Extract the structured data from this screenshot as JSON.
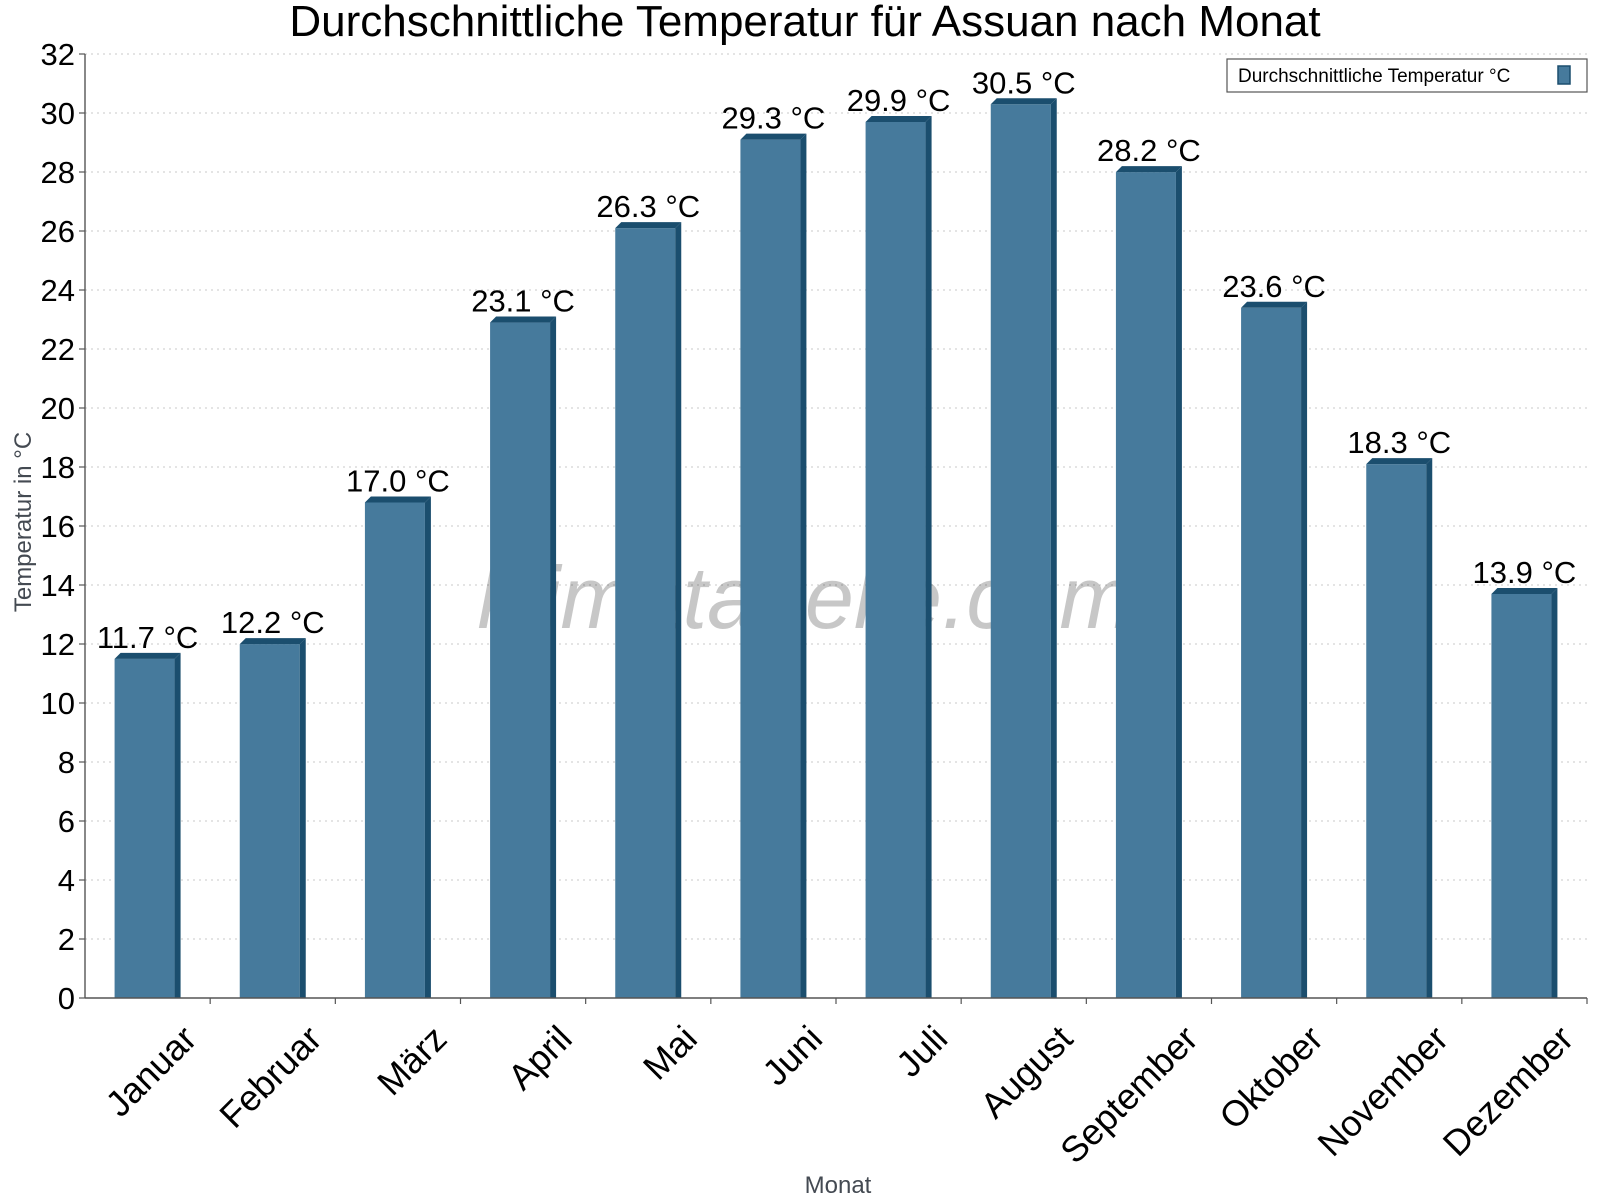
{
  "chart_data": {
    "type": "bar",
    "title": "Durchschnittliche Temperatur für Assuan nach Monat",
    "xlabel": "Monat",
    "ylabel": "Temperatur in °C",
    "ylim": [
      0,
      32
    ],
    "yticks": [
      0,
      2,
      4,
      6,
      8,
      10,
      12,
      14,
      16,
      18,
      20,
      22,
      24,
      26,
      28,
      30,
      32
    ],
    "grid": true,
    "legend_position": "top-right",
    "categories": [
      "Januar",
      "Februar",
      "März",
      "April",
      "Mai",
      "Juni",
      "Juli",
      "August",
      "September",
      "Oktober",
      "November",
      "Dezember"
    ],
    "series": [
      {
        "name": "Durchschnittliche Temperatur °C",
        "values": [
          11.7,
          12.2,
          17.0,
          23.1,
          26.3,
          29.3,
          29.9,
          30.5,
          28.2,
          23.6,
          18.3,
          13.9
        ],
        "labels": [
          "11.7 °C",
          "12.2 °C",
          "17.0 °C",
          "23.1 °C",
          "26.3 °C",
          "29.3 °C",
          "29.9 °C",
          "30.5 °C",
          "28.2 °C",
          "23.6 °C",
          "18.3 °C",
          "13.9 °C"
        ],
        "color": "#467a9c",
        "edge_color": "#1b4e6e"
      }
    ],
    "watermark": "klimatabelle.com"
  }
}
